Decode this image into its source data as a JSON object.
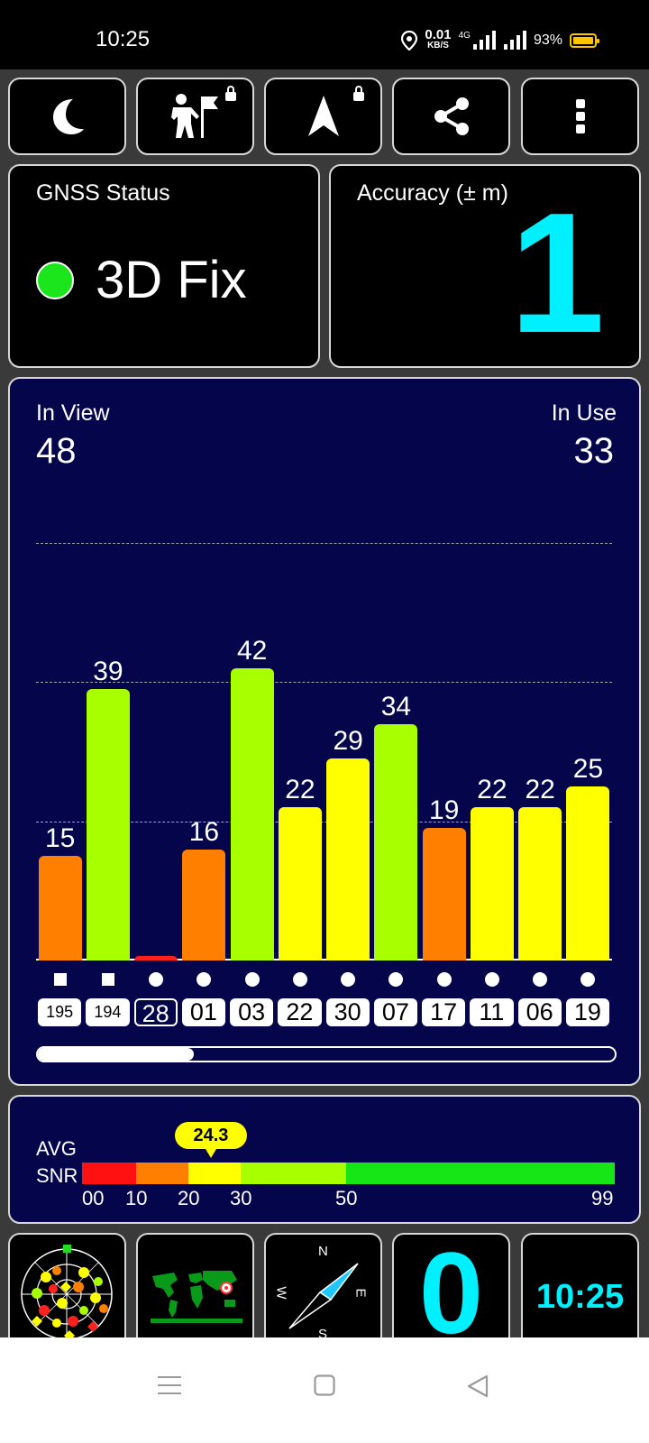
{
  "status_bar": {
    "time": "10:25",
    "speed_value": "0.01",
    "speed_unit": "KB/S",
    "network": "4G",
    "battery": "93%"
  },
  "toolbar": {
    "buttons": [
      {
        "name": "night-mode",
        "icon": "moon-icon",
        "locked": false
      },
      {
        "name": "location-marker",
        "icon": "person-flag-icon",
        "locked": true
      },
      {
        "name": "navigation",
        "icon": "navigation-arrow-icon",
        "locked": true
      },
      {
        "name": "share",
        "icon": "share-icon",
        "locked": false
      },
      {
        "name": "more",
        "icon": "more-vert-icon",
        "locked": false
      }
    ]
  },
  "gnss_status": {
    "label": "GNSS Status",
    "value": "3D Fix",
    "dot_color": "#1be51b"
  },
  "accuracy": {
    "label": "Accuracy (± m)",
    "value": "1",
    "color": "#00f0ff"
  },
  "satellites": {
    "in_view_label": "In View",
    "in_view": "48",
    "in_use_label": "In Use",
    "in_use": "33"
  },
  "chart_data": {
    "type": "bar",
    "categories": [
      "195",
      "194",
      "28",
      "01",
      "03",
      "22",
      "30",
      "07",
      "17",
      "11",
      "06",
      "19"
    ],
    "values": [
      15,
      39,
      0,
      16,
      42,
      22,
      29,
      34,
      19,
      22,
      22,
      25
    ],
    "value_labels": [
      "15",
      "39",
      "",
      "16",
      "42",
      "22",
      "29",
      "34",
      "19",
      "22",
      "22",
      "25"
    ],
    "markers": [
      "square",
      "square",
      "circle",
      "circle",
      "circle",
      "circle",
      "circle",
      "circle",
      "circle",
      "circle",
      "circle",
      "circle"
    ],
    "outlined": [
      false,
      false,
      true,
      false,
      false,
      false,
      false,
      false,
      false,
      false,
      false,
      false
    ],
    "ylim": [
      0,
      60
    ],
    "gridlines": [
      20,
      40,
      60
    ],
    "colors": {
      "red": "#ff1f1f",
      "orange": "#ff8000",
      "yellow": "#ffff00",
      "lime": "#a8ff00",
      "green": "#00e000"
    }
  },
  "scroll": {
    "position": 0.27
  },
  "snr": {
    "label_avg": "AVG",
    "label_snr": "SNR",
    "avg_value": "24.3",
    "avg": 24.3,
    "scale_labels": [
      "00",
      "10",
      "20",
      "30",
      "50",
      "99"
    ],
    "segments": [
      {
        "from": 0,
        "to": 10,
        "color": "#ff1111"
      },
      {
        "from": 10,
        "to": 20,
        "color": "#ff8000"
      },
      {
        "from": 20,
        "to": 30,
        "color": "#ffff00"
      },
      {
        "from": 30,
        "to": 50,
        "color": "#a8ff00"
      },
      {
        "from": 50,
        "to": 99,
        "color": "#16e616"
      }
    ]
  },
  "bottom_tiles": {
    "radar_icon": "sky-plot-icon",
    "map_icon": "world-map-icon",
    "compass": {
      "n": "N",
      "e": "E",
      "s": "S",
      "w": "W"
    },
    "speed_value": "0",
    "clock": "10:25",
    "accent": "#00f0ff"
  }
}
